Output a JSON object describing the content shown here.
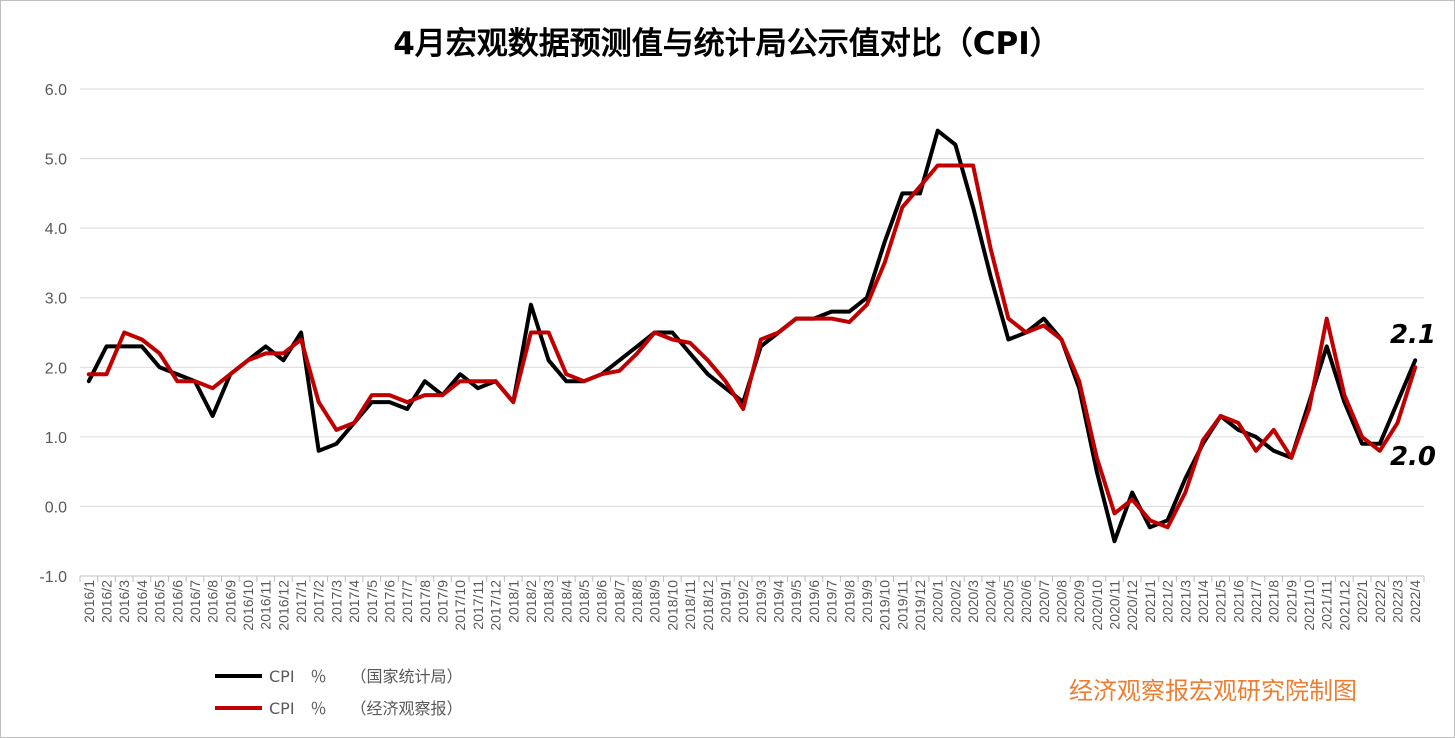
{
  "chart_data": {
    "type": "line",
    "title": "4月宏观数据预测值与统计局公示值对比（CPI）",
    "ylim": [
      -1.0,
      6.0
    ],
    "yticks": [
      "6.0",
      "5.0",
      "4.0",
      "3.0",
      "2.0",
      "1.0",
      "0.0",
      "-1.0"
    ],
    "grid": "horizontal",
    "legend_position": "bottom-left",
    "categories": [
      "2016/1",
      "2016/2",
      "2016/3",
      "2016/4",
      "2016/5",
      "2016/6",
      "2016/7",
      "2016/8",
      "2016/9",
      "2016/10",
      "2016/11",
      "2016/12",
      "2017/1",
      "2017/2",
      "2017/3",
      "2017/4",
      "2017/5",
      "2017/6",
      "2017/7",
      "2017/8",
      "2017/9",
      "2017/10",
      "2017/11",
      "2017/12",
      "2018/1",
      "2018/2",
      "2018/3",
      "2018/4",
      "2018/5",
      "2018/6",
      "2018/7",
      "2018/8",
      "2018/9",
      "2018/10",
      "2018/11",
      "2018/12",
      "2019/1",
      "2019/2",
      "2019/3",
      "2019/4",
      "2019/5",
      "2019/6",
      "2019/7",
      "2019/8",
      "2019/9",
      "2019/10",
      "2019/11",
      "2019/12",
      "2020/1",
      "2020/2",
      "2020/3",
      "2020/4",
      "2020/5",
      "2020/6",
      "2020/7",
      "2020/8",
      "2020/9",
      "2020/10",
      "2020/11",
      "2020/12",
      "2021/1",
      "2021/2",
      "2021/3",
      "2021/4",
      "2021/5",
      "2021/6",
      "2021/7",
      "2021/8",
      "2021/9",
      "2021/10",
      "2021/11",
      "2021/12",
      "2022/1",
      "2022/2",
      "2022/3",
      "2022/4"
    ],
    "series": [
      {
        "name": "CPI　％　　（国家统计局）",
        "color": "#000000",
        "values": [
          1.8,
          2.3,
          2.3,
          2.3,
          2.0,
          1.9,
          1.8,
          1.3,
          1.9,
          2.1,
          2.3,
          2.1,
          2.5,
          0.8,
          0.9,
          1.2,
          1.5,
          1.5,
          1.4,
          1.8,
          1.6,
          1.9,
          1.7,
          1.8,
          1.5,
          2.9,
          2.1,
          1.8,
          1.8,
          1.9,
          2.1,
          2.3,
          2.5,
          2.5,
          2.2,
          1.9,
          1.7,
          1.5,
          2.3,
          2.5,
          2.7,
          2.7,
          2.8,
          2.8,
          3.0,
          3.8,
          4.5,
          4.5,
          5.4,
          5.2,
          4.3,
          3.3,
          2.4,
          2.5,
          2.7,
          2.4,
          1.7,
          0.5,
          -0.5,
          0.2,
          -0.3,
          -0.2,
          0.4,
          0.9,
          1.3,
          1.1,
          1.0,
          0.8,
          0.7,
          1.5,
          2.3,
          1.5,
          0.9,
          0.9,
          1.5,
          2.1
        ]
      },
      {
        "name": "CPI　％　　（经济观察报）",
        "color": "#c00000",
        "values": [
          1.9,
          1.9,
          2.5,
          2.4,
          2.2,
          1.8,
          1.8,
          1.7,
          1.9,
          2.1,
          2.2,
          2.2,
          2.4,
          1.5,
          1.1,
          1.2,
          1.6,
          1.6,
          1.5,
          1.6,
          1.6,
          1.8,
          1.8,
          1.8,
          1.5,
          2.5,
          2.5,
          1.9,
          1.8,
          1.9,
          1.95,
          2.2,
          2.5,
          2.4,
          2.35,
          2.1,
          1.8,
          1.4,
          2.4,
          2.5,
          2.7,
          2.7,
          2.7,
          2.65,
          2.9,
          3.5,
          4.3,
          4.6,
          4.9,
          4.9,
          4.9,
          3.7,
          2.7,
          2.5,
          2.6,
          2.4,
          1.8,
          0.7,
          -0.1,
          0.1,
          -0.2,
          -0.3,
          0.2,
          0.95,
          1.3,
          1.2,
          0.8,
          1.1,
          0.7,
          1.4,
          2.7,
          1.6,
          1.0,
          0.8,
          1.2,
          2.0
        ]
      }
    ],
    "annotations": [
      "2.1",
      "2.0"
    ]
  },
  "watermark": "经济观察报宏观研究院制图"
}
